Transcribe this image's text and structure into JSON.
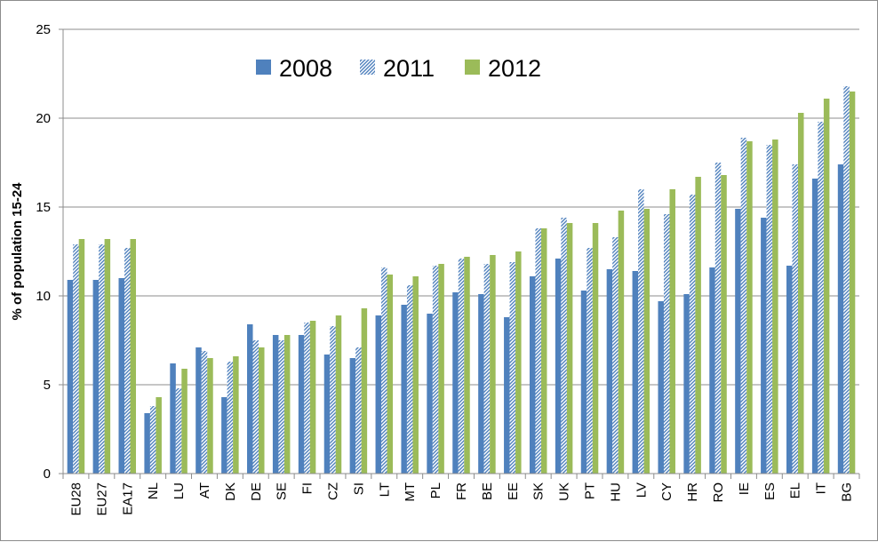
{
  "chart_data": {
    "type": "bar",
    "title": "",
    "xlabel": "",
    "ylabel": "% of population 15-24",
    "ylim": [
      0,
      25
    ],
    "yticks": [
      0,
      5,
      10,
      15,
      20,
      25
    ],
    "grid": true,
    "legend_position": "top-left",
    "categories": [
      "EU28",
      "EU27",
      "EA17",
      "NL",
      "LU",
      "AT",
      "DK",
      "DE",
      "SE",
      "FI",
      "CZ",
      "SI",
      "LT",
      "MT",
      "PL",
      "FR",
      "BE",
      "EE",
      "SK",
      "UK",
      "PT",
      "HU",
      "LV",
      "CY",
      "HR",
      "RO",
      "IE",
      "ES",
      "EL",
      "IT",
      "BG"
    ],
    "series": [
      {
        "name": "2008",
        "color": "#4F81BD",
        "pattern": "solid",
        "values": [
          10.9,
          10.9,
          11.0,
          3.4,
          6.2,
          7.1,
          4.3,
          8.4,
          7.8,
          7.8,
          6.7,
          6.5,
          8.9,
          9.5,
          9.0,
          10.2,
          10.1,
          8.8,
          11.1,
          12.1,
          10.3,
          11.5,
          11.4,
          9.7,
          10.1,
          11.6,
          14.9,
          14.4,
          11.7,
          16.6,
          17.4
        ]
      },
      {
        "name": "2011",
        "color": "#4F81BD",
        "pattern": "diagonal-hatch",
        "values": [
          12.9,
          12.9,
          12.7,
          3.8,
          4.8,
          6.9,
          6.3,
          7.5,
          7.5,
          8.5,
          8.3,
          7.1,
          11.6,
          10.6,
          11.7,
          12.1,
          11.8,
          11.9,
          13.8,
          14.4,
          12.7,
          13.3,
          16.0,
          14.6,
          15.7,
          17.5,
          18.9,
          18.5,
          17.4,
          19.8,
          21.8
        ]
      },
      {
        "name": "2012",
        "color": "#9BBB59",
        "pattern": "solid",
        "values": [
          13.2,
          13.2,
          13.2,
          4.3,
          5.9,
          6.5,
          6.6,
          7.1,
          7.8,
          8.6,
          8.9,
          9.3,
          11.2,
          11.1,
          11.8,
          12.2,
          12.3,
          12.5,
          13.8,
          14.1,
          14.1,
          14.8,
          14.9,
          16.0,
          16.7,
          16.8,
          18.7,
          18.8,
          20.3,
          21.1,
          21.5
        ]
      }
    ]
  }
}
